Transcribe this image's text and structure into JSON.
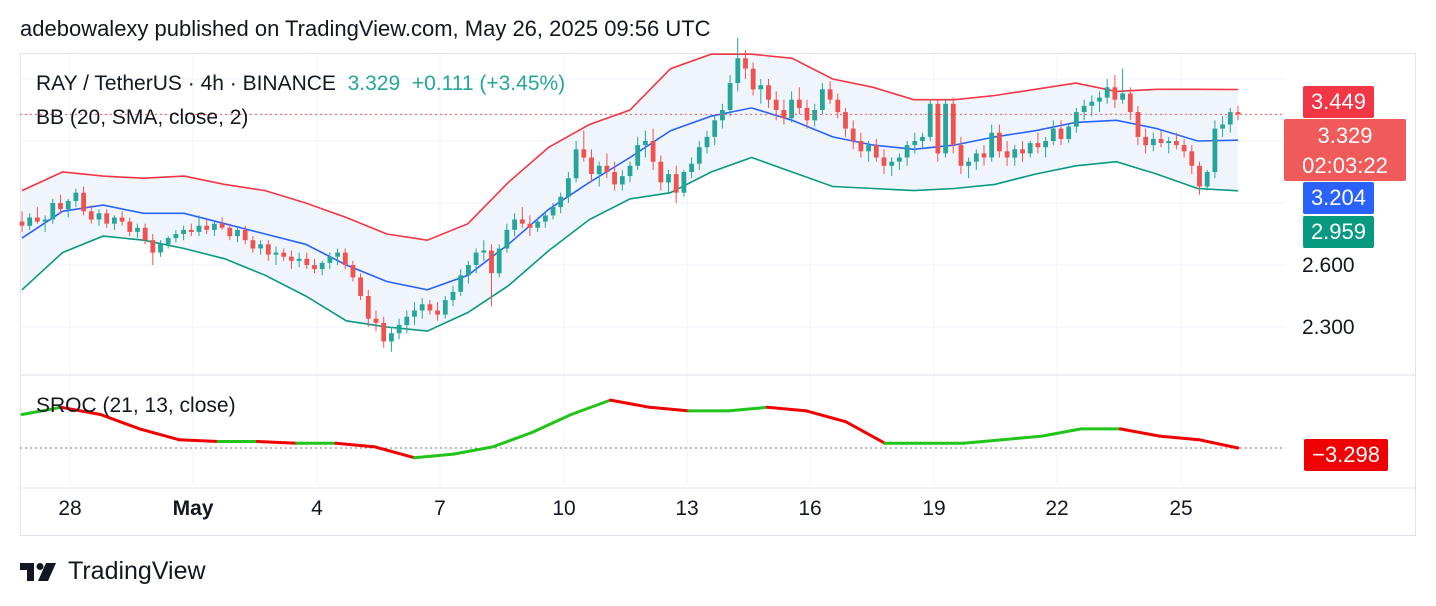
{
  "caption": "adebowalexy published on TradingView.com, May 26, 2025 09:56 UTC",
  "legend": {
    "symbol": "RAY / TetherUS · 4h · BINANCE",
    "price": "3.329",
    "change": "+0.111 (+3.45%)",
    "bb": "BB (20, SMA, close, 2)",
    "sroc": "SROC (21, 13, close)"
  },
  "price_scale": {
    "tags": {
      "upper": "3.449",
      "last": "3.329",
      "countdown": "02:03:22",
      "basis": "3.204",
      "lower": "2.959",
      "sroc": "−3.298"
    },
    "ticks": [
      "2.600",
      "2.300"
    ]
  },
  "time_axis": [
    "28",
    "May",
    "4",
    "7",
    "10",
    "13",
    "16",
    "19",
    "22",
    "25"
  ],
  "brand": "TradingView",
  "colors": {
    "up": "#26a69a",
    "down": "#ef5350",
    "bb_upper": "#f23645",
    "bb_basis": "#2962ff",
    "bb_lower": "#089981",
    "bb_fill": "#f0f5fc",
    "sroc_up": "#22c41a",
    "sroc_down": "#f00000",
    "sroc_tag": "#f00000"
  },
  "chart_data": {
    "type": "candlestick",
    "symbol": "RAY / TetherUS",
    "interval": "4h",
    "exchange": "BINANCE",
    "ylim": [
      2.0,
      3.75
    ],
    "x_ticks": [
      "28",
      "May",
      "4",
      "7",
      "10",
      "13",
      "16",
      "19",
      "22",
      "25"
    ],
    "last_price": 3.329,
    "bollinger": {
      "upper": [
        2.96,
        3.05,
        3.03,
        3.02,
        3.03,
        2.99,
        2.96,
        2.9,
        2.83,
        2.75,
        2.72,
        2.8,
        3.0,
        3.17,
        3.28,
        3.35,
        3.55,
        3.62,
        3.62,
        3.6,
        3.5,
        3.46,
        3.4,
        3.4,
        3.42,
        3.45,
        3.48,
        3.44,
        3.45,
        3.45,
        3.449
      ],
      "basis": [
        2.73,
        2.86,
        2.89,
        2.85,
        2.85,
        2.8,
        2.75,
        2.7,
        2.6,
        2.52,
        2.48,
        2.55,
        2.7,
        2.87,
        3.0,
        3.12,
        3.25,
        3.32,
        3.36,
        3.3,
        3.22,
        3.18,
        3.16,
        3.18,
        3.22,
        3.25,
        3.29,
        3.3,
        3.26,
        3.2,
        3.204
      ],
      "lower": [
        2.48,
        2.66,
        2.74,
        2.72,
        2.68,
        2.63,
        2.55,
        2.45,
        2.33,
        2.3,
        2.28,
        2.37,
        2.5,
        2.67,
        2.82,
        2.92,
        2.95,
        3.05,
        3.12,
        3.05,
        2.98,
        2.97,
        2.96,
        2.97,
        2.99,
        3.04,
        3.08,
        3.1,
        3.04,
        2.97,
        2.959
      ]
    },
    "sroc": {
      "name": "SROC (21, 13, close)",
      "last": -3.298,
      "values": [
        6,
        8,
        6,
        2,
        -1,
        -1.5,
        -1.5,
        -2,
        -2,
        -3,
        -6,
        -5,
        -3,
        1,
        6,
        10,
        8,
        7,
        7,
        8,
        7,
        4,
        -2,
        -2,
        -2,
        -1,
        0,
        2,
        2,
        0,
        -1,
        -3.298
      ]
    },
    "candles": [
      [
        2.81,
        2.86,
        2.76,
        2.79
      ],
      [
        2.79,
        2.85,
        2.77,
        2.83
      ],
      [
        2.83,
        2.88,
        2.8,
        2.81
      ],
      [
        2.81,
        2.84,
        2.76,
        2.82
      ],
      [
        2.82,
        2.92,
        2.8,
        2.9
      ],
      [
        2.9,
        2.94,
        2.85,
        2.87
      ],
      [
        2.87,
        2.92,
        2.83,
        2.91
      ],
      [
        2.91,
        2.97,
        2.88,
        2.95
      ],
      [
        2.95,
        2.98,
        2.84,
        2.86
      ],
      [
        2.86,
        2.89,
        2.8,
        2.82
      ],
      [
        2.82,
        2.87,
        2.79,
        2.85
      ],
      [
        2.85,
        2.87,
        2.78,
        2.8
      ],
      [
        2.8,
        2.84,
        2.77,
        2.83
      ],
      [
        2.83,
        2.86,
        2.79,
        2.81
      ],
      [
        2.81,
        2.83,
        2.74,
        2.76
      ],
      [
        2.76,
        2.8,
        2.73,
        2.78
      ],
      [
        2.78,
        2.8,
        2.7,
        2.72
      ],
      [
        2.72,
        2.75,
        2.6,
        2.66
      ],
      [
        2.66,
        2.72,
        2.64,
        2.7
      ],
      [
        2.7,
        2.74,
        2.68,
        2.73
      ],
      [
        2.73,
        2.77,
        2.71,
        2.75
      ],
      [
        2.75,
        2.79,
        2.72,
        2.77
      ],
      [
        2.77,
        2.8,
        2.74,
        2.76
      ],
      [
        2.76,
        2.84,
        2.74,
        2.79
      ],
      [
        2.79,
        2.82,
        2.75,
        2.77
      ],
      [
        2.77,
        2.81,
        2.74,
        2.8
      ],
      [
        2.8,
        2.83,
        2.77,
        2.78
      ],
      [
        2.78,
        2.8,
        2.72,
        2.74
      ],
      [
        2.74,
        2.78,
        2.71,
        2.77
      ],
      [
        2.77,
        2.79,
        2.7,
        2.72
      ],
      [
        2.72,
        2.74,
        2.66,
        2.68
      ],
      [
        2.68,
        2.72,
        2.65,
        2.7
      ],
      [
        2.7,
        2.72,
        2.62,
        2.65
      ],
      [
        2.65,
        2.69,
        2.6,
        2.66
      ],
      [
        2.66,
        2.68,
        2.62,
        2.64
      ],
      [
        2.64,
        2.67,
        2.58,
        2.62
      ],
      [
        2.62,
        2.66,
        2.59,
        2.63
      ],
      [
        2.63,
        2.66,
        2.58,
        2.6
      ],
      [
        2.6,
        2.63,
        2.56,
        2.58
      ],
      [
        2.58,
        2.62,
        2.55,
        2.61
      ],
      [
        2.61,
        2.66,
        2.58,
        2.64
      ],
      [
        2.64,
        2.68,
        2.6,
        2.66
      ],
      [
        2.66,
        2.68,
        2.58,
        2.6
      ],
      [
        2.6,
        2.62,
        2.52,
        2.54
      ],
      [
        2.54,
        2.56,
        2.43,
        2.45
      ],
      [
        2.45,
        2.48,
        2.3,
        2.34
      ],
      [
        2.34,
        2.38,
        2.28,
        2.32
      ],
      [
        2.32,
        2.35,
        2.2,
        2.23
      ],
      [
        2.23,
        2.3,
        2.18,
        2.27
      ],
      [
        2.27,
        2.34,
        2.24,
        2.31
      ],
      [
        2.31,
        2.38,
        2.27,
        2.35
      ],
      [
        2.35,
        2.42,
        2.31,
        2.38
      ],
      [
        2.38,
        2.44,
        2.34,
        2.41
      ],
      [
        2.41,
        2.43,
        2.36,
        2.38
      ],
      [
        2.38,
        2.42,
        2.33,
        2.36
      ],
      [
        2.36,
        2.45,
        2.34,
        2.43
      ],
      [
        2.43,
        2.5,
        2.4,
        2.47
      ],
      [
        2.47,
        2.58,
        2.45,
        2.55
      ],
      [
        2.55,
        2.62,
        2.51,
        2.6
      ],
      [
        2.6,
        2.68,
        2.56,
        2.66
      ],
      [
        2.66,
        2.72,
        2.62,
        2.67
      ],
      [
        2.67,
        2.7,
        2.4,
        2.56
      ],
      [
        2.56,
        2.7,
        2.54,
        2.68
      ],
      [
        2.68,
        2.8,
        2.66,
        2.77
      ],
      [
        2.77,
        2.85,
        2.74,
        2.82
      ],
      [
        2.82,
        2.88,
        2.78,
        2.8
      ],
      [
        2.8,
        2.84,
        2.74,
        2.78
      ],
      [
        2.78,
        2.83,
        2.76,
        2.81
      ],
      [
        2.81,
        2.86,
        2.78,
        2.84
      ],
      [
        2.84,
        2.9,
        2.82,
        2.88
      ],
      [
        2.88,
        2.95,
        2.85,
        2.93
      ],
      [
        2.93,
        3.05,
        2.9,
        3.02
      ],
      [
        3.02,
        3.2,
        3.0,
        3.16
      ],
      [
        3.16,
        3.25,
        3.1,
        3.12
      ],
      [
        3.12,
        3.16,
        3.0,
        3.04
      ],
      [
        3.04,
        3.1,
        2.98,
        3.08
      ],
      [
        3.08,
        3.14,
        3.02,
        3.05
      ],
      [
        3.05,
        3.1,
        2.96,
        2.99
      ],
      [
        2.99,
        3.06,
        2.96,
        3.03
      ],
      [
        3.03,
        3.1,
        3.0,
        3.08
      ],
      [
        3.08,
        3.22,
        3.06,
        3.18
      ],
      [
        3.18,
        3.25,
        3.12,
        3.2
      ],
      [
        3.2,
        3.26,
        3.06,
        3.1
      ],
      [
        3.1,
        3.13,
        2.96,
        3.0
      ],
      [
        3.0,
        3.06,
        2.95,
        3.04
      ],
      [
        3.04,
        3.08,
        2.9,
        2.95
      ],
      [
        2.95,
        3.06,
        2.93,
        3.05
      ],
      [
        3.05,
        3.12,
        3.02,
        3.09
      ],
      [
        3.09,
        3.2,
        3.06,
        3.17
      ],
      [
        3.17,
        3.25,
        3.14,
        3.22
      ],
      [
        3.22,
        3.32,
        3.18,
        3.3
      ],
      [
        3.3,
        3.38,
        3.26,
        3.35
      ],
      [
        3.35,
        3.52,
        3.32,
        3.48
      ],
      [
        3.48,
        3.7,
        3.44,
        3.6
      ],
      [
        3.6,
        3.64,
        3.5,
        3.55
      ],
      [
        3.55,
        3.58,
        3.42,
        3.45
      ],
      [
        3.45,
        3.5,
        3.38,
        3.47
      ],
      [
        3.47,
        3.5,
        3.36,
        3.4
      ],
      [
        3.4,
        3.44,
        3.3,
        3.35
      ],
      [
        3.35,
        3.4,
        3.28,
        3.31
      ],
      [
        3.31,
        3.44,
        3.29,
        3.4
      ],
      [
        3.4,
        3.46,
        3.33,
        3.36
      ],
      [
        3.36,
        3.4,
        3.26,
        3.3
      ],
      [
        3.3,
        3.38,
        3.27,
        3.35
      ],
      [
        3.35,
        3.48,
        3.33,
        3.45
      ],
      [
        3.45,
        3.49,
        3.38,
        3.4
      ],
      [
        3.4,
        3.43,
        3.31,
        3.34
      ],
      [
        3.34,
        3.36,
        3.22,
        3.26
      ],
      [
        3.26,
        3.3,
        3.16,
        3.2
      ],
      [
        3.2,
        3.24,
        3.12,
        3.15
      ],
      [
        3.15,
        3.2,
        3.1,
        3.18
      ],
      [
        3.18,
        3.21,
        3.1,
        3.12
      ],
      [
        3.12,
        3.16,
        3.04,
        3.08
      ],
      [
        3.08,
        3.12,
        3.03,
        3.1
      ],
      [
        3.1,
        3.14,
        3.06,
        3.12
      ],
      [
        3.12,
        3.2,
        3.08,
        3.18
      ],
      [
        3.18,
        3.24,
        3.14,
        3.2
      ],
      [
        3.2,
        3.24,
        3.16,
        3.22
      ],
      [
        3.22,
        3.4,
        3.2,
        3.38
      ],
      [
        3.38,
        3.4,
        3.1,
        3.14
      ],
      [
        3.14,
        3.4,
        3.12,
        3.38
      ],
      [
        3.38,
        3.41,
        3.14,
        3.18
      ],
      [
        3.18,
        3.22,
        3.04,
        3.08
      ],
      [
        3.08,
        3.12,
        3.02,
        3.1
      ],
      [
        3.1,
        3.16,
        3.06,
        3.14
      ],
      [
        3.14,
        3.18,
        3.08,
        3.12
      ],
      [
        3.12,
        3.28,
        3.1,
        3.24
      ],
      [
        3.24,
        3.28,
        3.12,
        3.15
      ],
      [
        3.15,
        3.2,
        3.08,
        3.12
      ],
      [
        3.12,
        3.18,
        3.08,
        3.16
      ],
      [
        3.16,
        3.2,
        3.1,
        3.14
      ],
      [
        3.14,
        3.2,
        3.12,
        3.19
      ],
      [
        3.19,
        3.24,
        3.14,
        3.17
      ],
      [
        3.17,
        3.22,
        3.12,
        3.2
      ],
      [
        3.2,
        3.3,
        3.18,
        3.26
      ],
      [
        3.26,
        3.3,
        3.18,
        3.21
      ],
      [
        3.21,
        3.28,
        3.19,
        3.27
      ],
      [
        3.27,
        3.36,
        3.24,
        3.34
      ],
      [
        3.34,
        3.4,
        3.3,
        3.37
      ],
      [
        3.37,
        3.42,
        3.32,
        3.39
      ],
      [
        3.39,
        3.44,
        3.34,
        3.41
      ],
      [
        3.41,
        3.5,
        3.38,
        3.46
      ],
      [
        3.46,
        3.52,
        3.36,
        3.4
      ],
      [
        3.4,
        3.55,
        3.38,
        3.43
      ],
      [
        3.43,
        3.46,
        3.3,
        3.34
      ],
      [
        3.34,
        3.37,
        3.18,
        3.22
      ],
      [
        3.22,
        3.26,
        3.14,
        3.18
      ],
      [
        3.18,
        3.24,
        3.15,
        3.21
      ],
      [
        3.21,
        3.25,
        3.17,
        3.19
      ],
      [
        3.19,
        3.22,
        3.14,
        3.2
      ],
      [
        3.2,
        3.24,
        3.16,
        3.18
      ],
      [
        3.18,
        3.21,
        3.12,
        3.15
      ],
      [
        3.15,
        3.18,
        3.04,
        3.08
      ],
      [
        3.08,
        3.1,
        2.94,
        2.98
      ],
      [
        2.98,
        3.06,
        2.96,
        3.05
      ],
      [
        3.05,
        3.3,
        3.02,
        3.26
      ],
      [
        3.26,
        3.32,
        3.22,
        3.28
      ],
      [
        3.28,
        3.36,
        3.24,
        3.34
      ],
      [
        3.34,
        3.37,
        3.3,
        3.329
      ]
    ]
  }
}
